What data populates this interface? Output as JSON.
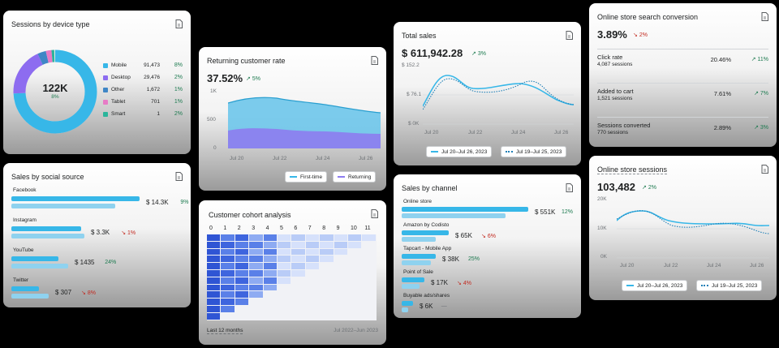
{
  "cards": {
    "sessions_device": {
      "title": "Sessions by device type",
      "center_value": "122K",
      "center_change": "8%",
      "legend": [
        {
          "name": "Mobile",
          "value": "91,473",
          "change": "8%",
          "color": "#37b7e8"
        },
        {
          "name": "Desktop",
          "value": "29,476",
          "change": "2%",
          "color": "#8d6cf0"
        },
        {
          "name": "Other",
          "value": "1,672",
          "change": "1%",
          "color": "#3f86c6"
        },
        {
          "name": "Tablet",
          "value": "701",
          "change": "1%",
          "color": "#e77bc6"
        },
        {
          "name": "Smart",
          "value": "1",
          "change": "2%",
          "color": "#2bb59b"
        }
      ]
    },
    "social": {
      "title": "Sales by social source",
      "items": [
        {
          "name": "Facebook",
          "value": "$ 14.3K",
          "change": "9%",
          "dir": "up"
        },
        {
          "name": "Instagram",
          "value": "$ 3.3K",
          "change": "1%",
          "dir": "down"
        },
        {
          "name": "YouTube",
          "value": "$ 1435",
          "change": "24%",
          "dir": "up"
        },
        {
          "name": "Twitter",
          "value": "$ 307",
          "change": "8%",
          "dir": "down"
        }
      ]
    },
    "returning": {
      "title": "Returning customer rate",
      "value": "37.52%",
      "change": "5%",
      "yticks": [
        "1K",
        "500",
        "0"
      ],
      "xticks": [
        "Jul 20",
        "Jul 22",
        "Jul 24",
        "Jul 26"
      ],
      "legend_first": "First-time",
      "legend_returning": "Returning"
    },
    "cohort": {
      "title": "Customer cohort analysis",
      "cols": [
        "0",
        "1",
        "2",
        "3",
        "4",
        "5",
        "6",
        "7",
        "8",
        "9",
        "10",
        "11"
      ],
      "footer_left": "Last 12 months",
      "footer_right": "Jul 2022–Jun 2023"
    },
    "total_sales": {
      "title": "Total sales",
      "value": "$ 611,942.28",
      "change": "3%",
      "yticks": [
        "$ 152.2",
        "$ 76.1",
        "$ 0K"
      ],
      "xticks": [
        "Jul 20",
        "Jul 22",
        "Jul 24",
        "Jul 26"
      ],
      "legend_current": "Jul 20–Jul 26, 2023",
      "legend_previous": "Jul 19–Jul 25, 2023"
    },
    "channel": {
      "title": "Sales by channel",
      "items": [
        {
          "name": "Online store",
          "value": "$ 551K",
          "change": "12%",
          "dir": "up"
        },
        {
          "name": "Amazon by Codisto",
          "value": "$ 65K",
          "change": "6%",
          "dir": "down"
        },
        {
          "name": "Tapcart - Mobile App",
          "value": "$ 38K",
          "change": "25%",
          "dir": "up"
        },
        {
          "name": "Point of Sale",
          "value": "$ 17K",
          "change": "4%",
          "dir": "down"
        },
        {
          "name": "Buyable ads/shares",
          "value": "$ 6K",
          "change": "—",
          "dir": "none"
        }
      ]
    },
    "conversion": {
      "title": "Online store search conversion",
      "value": "3.89%",
      "change": "2%",
      "rows": [
        {
          "label": "Click rate",
          "sub": "4,087 sessions",
          "value": "20.46%",
          "change": "11%"
        },
        {
          "label": "Added to cart",
          "sub": "1,521 sessions",
          "value": "7.61%",
          "change": "7%"
        },
        {
          "label": "Sessions converted",
          "sub": "770 sessions",
          "value": "2.89%",
          "change": "3%"
        }
      ]
    },
    "store_sessions": {
      "title": "Online store sessions",
      "value": "103,482",
      "change": "2%",
      "yticks": [
        "20K",
        "10K",
        "0K"
      ],
      "xticks": [
        "Jul 20",
        "Jul 22",
        "Jul 24",
        "Jul 26"
      ],
      "legend_current": "Jul 20–Jul 26, 2023",
      "legend_previous": "Jul 19–Jul 25, 2023"
    }
  }
}
